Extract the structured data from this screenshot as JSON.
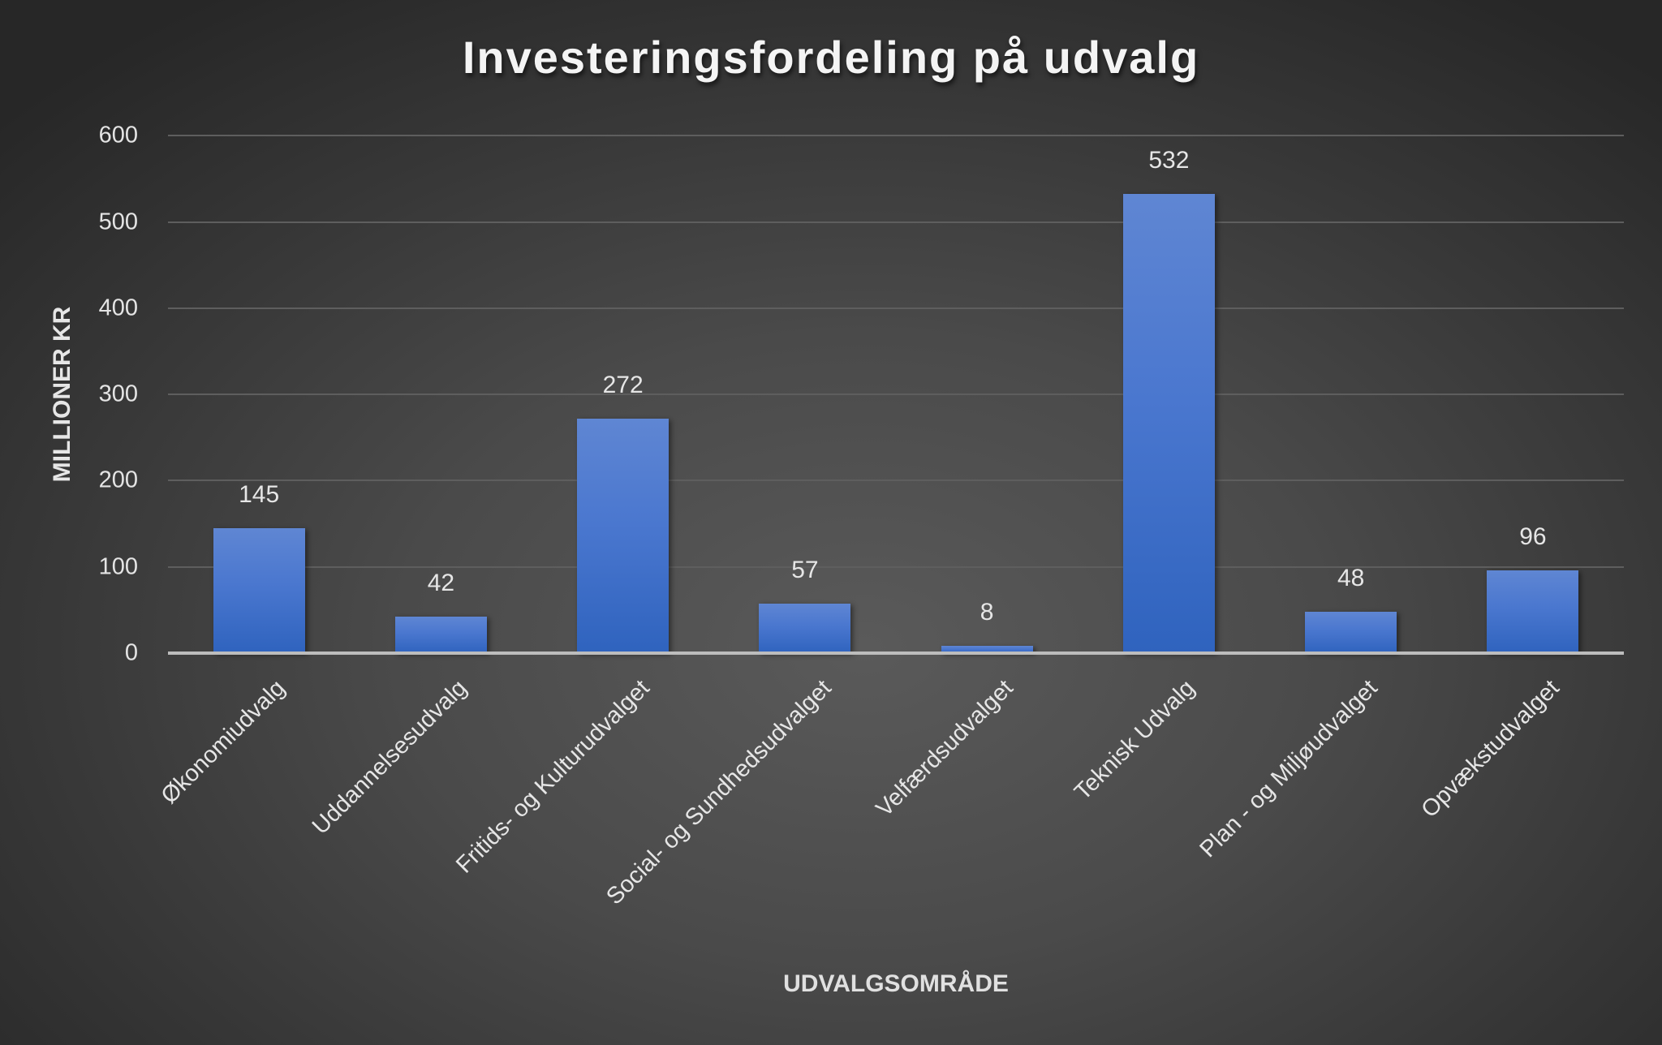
{
  "chart": {
    "title": "Investeringsfordeling på udvalg",
    "ylabel": "MILLIONER KR",
    "xlabel": "UDVALGSOMRÅDE",
    "yticks": [
      "600",
      "500",
      "400",
      "300",
      "200",
      "100",
      "0"
    ],
    "categories": [
      "Økonomiudvalg",
      "Uddannelsesudvalg",
      "Fritids- og Kulturudvalget",
      "Social- og Sundhedsudvalget",
      "Velfærdsudvalget",
      "Teknisk Udvalg",
      "Plan - og Miljøudvalget",
      "Opvækstudvalget"
    ],
    "value_labels": [
      "145",
      "42",
      "272",
      "57",
      "8",
      "532",
      "48",
      "96"
    ],
    "bar_color_top": "#5f86d3",
    "bar_color_bottom": "#2f63be",
    "background_center": "#5a5a5a",
    "background_edge": "#272727"
  },
  "chart_data": {
    "type": "bar",
    "title": "Investeringsfordeling på udvalg",
    "xlabel": "UDVALGSOMRÅDE",
    "ylabel": "MILLIONER KR",
    "categories": [
      "Økonomiudvalg",
      "Uddannelsesudvalg",
      "Fritids- og Kulturudvalget",
      "Social- og Sundhedsudvalget",
      "Velfærdsudvalget",
      "Teknisk Udvalg",
      "Plan - og Miljøudvalget",
      "Opvækstudvalget"
    ],
    "values": [
      145,
      42,
      272,
      57,
      8,
      532,
      48,
      96
    ],
    "ylim": [
      0,
      600
    ],
    "yticks": [
      0,
      100,
      200,
      300,
      400,
      500,
      600
    ],
    "grid": true,
    "legend": null,
    "data_labels": true,
    "xtick_rotation": -45
  }
}
